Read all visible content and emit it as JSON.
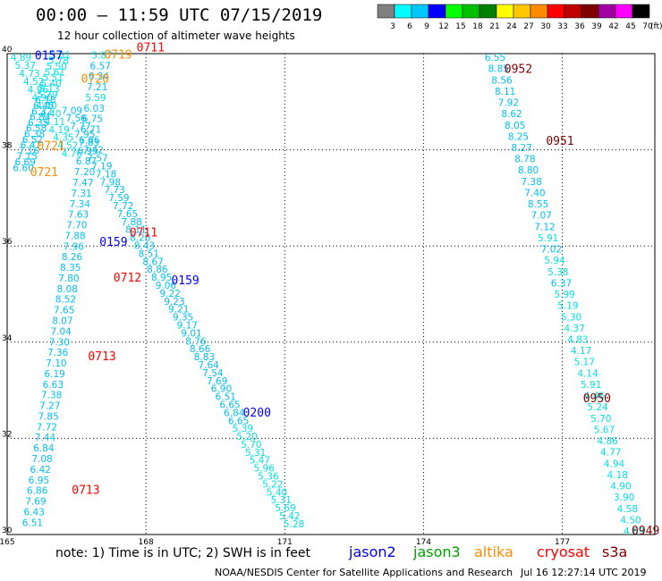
{
  "header": {
    "title": "00:00 – 11:59 UTC 07/15/2019",
    "subtitle": "12 hour collection of altimeter wave heights"
  },
  "legend": {
    "unit": "(ft)",
    "bins": [
      {
        "label": "3",
        "color": "#808080"
      },
      {
        "label": "6",
        "color": "#00ffff"
      },
      {
        "label": "9",
        "color": "#00c8ff"
      },
      {
        "label": "12",
        "color": "#0000ff"
      },
      {
        "label": "15",
        "color": "#00ff00"
      },
      {
        "label": "18",
        "color": "#00c000"
      },
      {
        "label": "21",
        "color": "#008000"
      },
      {
        "label": "24",
        "color": "#ffff00"
      },
      {
        "label": "27",
        "color": "#ffc800"
      },
      {
        "label": "30",
        "color": "#ff8c00"
      },
      {
        "label": "33",
        "color": "#ff0000"
      },
      {
        "label": "36",
        "color": "#c00000"
      },
      {
        "label": "39",
        "color": "#800000"
      },
      {
        "label": "42",
        "color": "#a000a0"
      },
      {
        "label": "45",
        "color": "#ff00ff"
      },
      {
        "label": "70",
        "color": "#000000"
      }
    ]
  },
  "axes": {
    "x_ticks": [
      "165",
      "168",
      "171",
      "174",
      "177"
    ],
    "y_ticks": [
      "40",
      "38",
      "36",
      "34",
      "32",
      "30"
    ],
    "lon_range": [
      165,
      179
    ],
    "lat_range": [
      30,
      40
    ]
  },
  "colors": {
    "swh_light": "#00e0e8",
    "swh_mid": "#00c0f0",
    "jason2": "#0000ff",
    "jason3": "#00a000",
    "altika": "#ff8c00",
    "cryosat": "#ff0000",
    "s3a": "#800000"
  },
  "chart_data": {
    "type": "scatter",
    "unit": "ft",
    "passes": [
      {
        "mission": "jason2",
        "time": "0157",
        "lon": 165.9,
        "lat": 39.88
      },
      {
        "mission": "jason2",
        "time": "0159",
        "lon": 167.3,
        "lat": 36.0
      },
      {
        "mission": "jason2",
        "time": "0159",
        "lon": 168.85,
        "lat": 35.2
      },
      {
        "mission": "jason2",
        "time": "0200",
        "lon": 170.4,
        "lat": 32.45
      },
      {
        "mission": "altika",
        "time": "0719",
        "lon": 167.4,
        "lat": 39.9
      },
      {
        "mission": "altika",
        "time": "0720",
        "lon": 166.9,
        "lat": 39.4
      },
      {
        "mission": "altika",
        "time": "0721",
        "lon": 165.95,
        "lat": 38.0
      },
      {
        "mission": "altika",
        "time": "0721",
        "lon": 165.8,
        "lat": 37.45
      },
      {
        "mission": "cryosat",
        "time": "0711",
        "lon": 168.1,
        "lat": 40.05
      },
      {
        "mission": "cryosat",
        "time": "0711",
        "lon": 167.95,
        "lat": 36.2
      },
      {
        "mission": "cryosat",
        "time": "0712",
        "lon": 167.6,
        "lat": 35.26
      },
      {
        "mission": "cryosat",
        "time": "0713",
        "lon": 167.05,
        "lat": 33.62
      },
      {
        "mission": "cryosat",
        "time": "0713",
        "lon": 166.7,
        "lat": 30.85
      },
      {
        "mission": "s3a",
        "time": "0952",
        "lon": 176.05,
        "lat": 39.6
      },
      {
        "mission": "s3a",
        "time": "0951",
        "lon": 176.95,
        "lat": 38.1
      },
      {
        "mission": "s3a",
        "time": "0950",
        "lon": 177.75,
        "lat": 32.75
      },
      {
        "mission": "s3a",
        "time": "0949",
        "lon": 178.8,
        "lat": 30.0
      }
    ],
    "tracks": [
      {
        "name": "A",
        "values": [
          "4.89",
          "5.37",
          "4.73",
          "4.52",
          "4.96",
          "4.90",
          "4.40",
          "4.40",
          "4.11",
          "4.19",
          "4.35",
          "4.52",
          "4.76"
        ],
        "start": [
          165.3,
          39.85
        ],
        "end": [
          166.4,
          37.85
        ]
      },
      {
        "name": "B",
        "values": [
          "5.51",
          "5.78",
          "5.50",
          "5.61",
          "5.51",
          "5.40",
          "5.13",
          "5.79",
          "6.18",
          "6.45",
          "6.32",
          "6.84",
          "6.35",
          "6.58",
          "6.38",
          "6.52",
          "6.47",
          "7.16",
          "7.15",
          "6.69",
          "6.60"
        ],
        "start": [
          166.15,
          39.9
        ],
        "end": [
          165.35,
          37.56
        ]
      },
      {
        "name": "C",
        "values": [
          "5.87",
          "6.57",
          "6.34",
          "7.21",
          "5.59",
          "6.03",
          "6.75",
          "6.71",
          "6.86",
          "6.95",
          "6.87",
          "7.20",
          "7.47",
          "7.31",
          "7.34",
          "7.63",
          "7.70",
          "7.88",
          "7.96",
          "8.26",
          "8.35",
          "7.80",
          "8.08",
          "8.52",
          "7.65",
          "8.07",
          "7.04",
          "7.30",
          "7.36",
          "7.10",
          "6.19",
          "6.63",
          "7.38",
          "7.27",
          "7.85",
          "7.72",
          "7.44",
          "6.84",
          "7.08",
          "6.42",
          "6.95",
          "6.86",
          "7.69",
          "6.43",
          "6.51"
        ],
        "start": [
          167.05,
          39.9
        ],
        "end": [
          165.55,
          30.18
        ]
      },
      {
        "name": "D",
        "values": [
          "7.09",
          "7.56",
          "7.77",
          "7.95",
          "7.83",
          "7.42",
          "7.57",
          "7.19",
          "7.18",
          "7.98",
          "7.73",
          "7.59",
          "7.72",
          "7.65",
          "7.88",
          "8.11",
          "8.26",
          "8.43",
          "8.51",
          "8.67",
          "8.86",
          "8.95",
          "9.06",
          "9.22",
          "9.23",
          "9.21",
          "9.35",
          "9.17",
          "9.01",
          "8.76",
          "8.66",
          "8.83",
          "7.64",
          "7.54",
          "7.69",
          "6.90",
          "6.51",
          "6.65",
          "6.84",
          "6.65",
          "5.39",
          "5.20",
          "5.70",
          "5.31",
          "5.47",
          "5.96",
          "5.36",
          "5.22",
          "5.40",
          "5.31",
          "5.69",
          "5.42",
          "5.28"
        ],
        "start": [
          166.4,
          38.75
        ],
        "end": [
          171.2,
          30.15
        ]
      },
      {
        "name": "E",
        "values": [
          "6.55",
          "8.85",
          "8.56",
          "8.11",
          "7.92",
          "8.62",
          "8.05",
          "8.25",
          "8.27",
          "8.78",
          "8.80",
          "7.38",
          "7.40",
          "8.55",
          "7.07",
          "7.12",
          "5.91",
          "7.02",
          "5.94",
          "5.38",
          "6.37",
          "5.99",
          "5.19",
          "5.30",
          "4.37",
          "4.83",
          "4.17",
          "5.17",
          "4.14",
          "5.91",
          "4.46",
          "5.24",
          "5.70",
          "5.67",
          "4.86",
          "4.77",
          "4.94",
          "4.18",
          "4.90",
          "3.90",
          "4.58",
          "4.50",
          "4.69"
        ],
        "start": [
          175.55,
          39.85
        ],
        "end": [
          178.55,
          30.0
        ]
      }
    ]
  },
  "footer": {
    "note": "note:  1) Time is in UTC;  2) SWH is in feet",
    "missions": [
      {
        "label": "jason2",
        "color": "#0000ff"
      },
      {
        "label": "jason3",
        "color": "#00a000"
      },
      {
        "label": "altika",
        "color": "#ff8c00"
      },
      {
        "label": "cryosat",
        "color": "#ff0000"
      },
      {
        "label": "s3a",
        "color": "#800000"
      }
    ],
    "credit": "NOAA/NESDIS Center for Satellite Applications and Research",
    "timestamp": "Jul 16 12:27:14 UTC 2019"
  }
}
